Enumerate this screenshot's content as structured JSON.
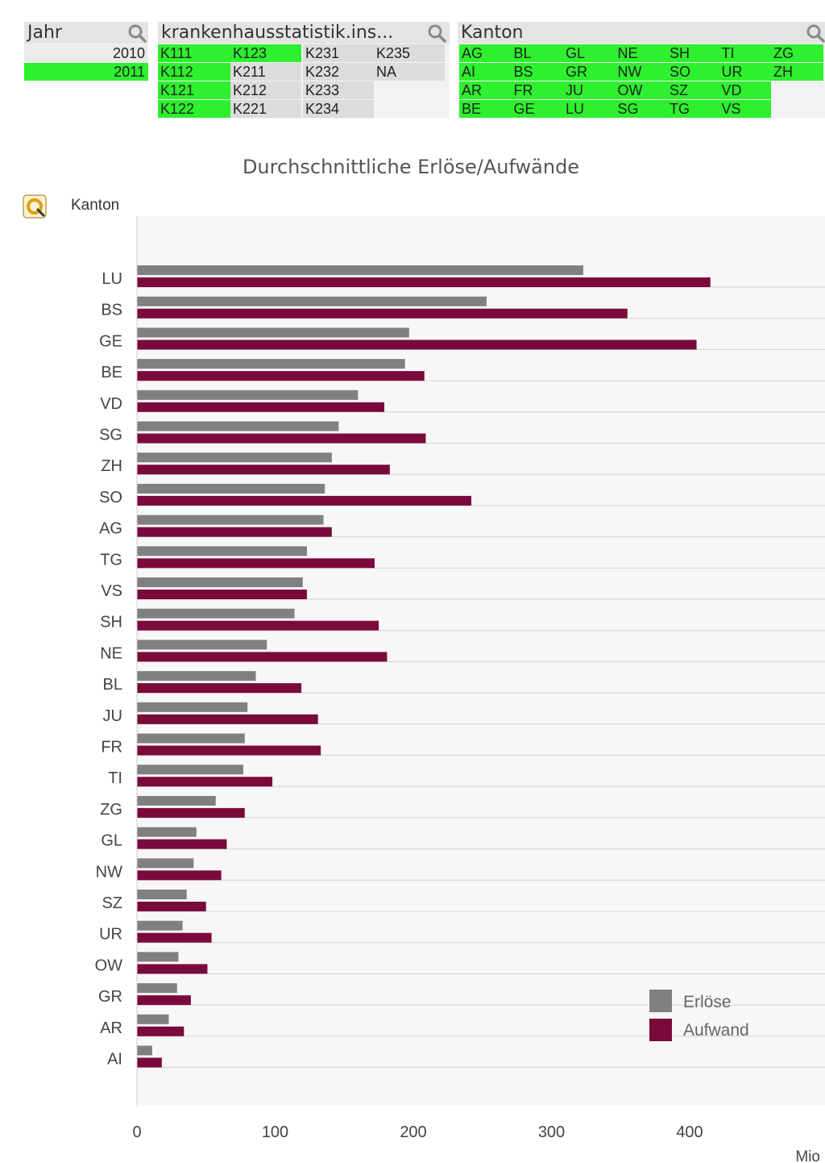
{
  "jahr_box": {
    "title": "Jahr",
    "values": [
      {
        "label": "2010",
        "selected": false
      },
      {
        "label": "2011",
        "selected": true
      }
    ]
  },
  "kh_box": {
    "title": "krankenhausstatistik.ins...",
    "columns": [
      [
        {
          "label": "K111",
          "selected": true
        },
        {
          "label": "K112",
          "selected": true
        },
        {
          "label": "K121",
          "selected": true
        },
        {
          "label": "K122",
          "selected": true
        }
      ],
      [
        {
          "label": "K123",
          "selected": true
        },
        {
          "label": "K211",
          "selected": false
        },
        {
          "label": "K212",
          "selected": false
        },
        {
          "label": "K221",
          "selected": false
        }
      ],
      [
        {
          "label": "K231",
          "selected": false
        },
        {
          "label": "K232",
          "selected": false
        },
        {
          "label": "K233",
          "selected": false
        },
        {
          "label": "K234",
          "selected": false
        }
      ],
      [
        {
          "label": "K235",
          "selected": false
        },
        {
          "label": "NA",
          "selected": false
        }
      ]
    ]
  },
  "kanton_box": {
    "title": "Kanton",
    "rows": [
      [
        "AG",
        "BL",
        "GL",
        "NE",
        "SH",
        "TI",
        "ZG"
      ],
      [
        "AI",
        "BS",
        "GR",
        "NW",
        "SO",
        "UR",
        "ZH"
      ],
      [
        "AR",
        "FR",
        "JU",
        "OW",
        "SZ",
        "VD"
      ],
      [
        "BE",
        "GE",
        "LU",
        "SG",
        "TG",
        "VS"
      ]
    ]
  },
  "colors": {
    "selected": "#2ef02e",
    "erloese": "#808080",
    "aufwand": "#7b0a3c"
  },
  "icons": {
    "search": "search-icon",
    "cycle": "cycle-dimension-icon"
  },
  "chart_data": {
    "type": "bar",
    "orientation": "horizontal",
    "title": "Durchschnittliche Erlöse/Aufwände",
    "dimension_label": "Kanton",
    "unit_label": "Mio",
    "categories": [
      "LU",
      "BS",
      "GE",
      "BE",
      "VD",
      "SG",
      "ZH",
      "SO",
      "AG",
      "TG",
      "VS",
      "SH",
      "NE",
      "BL",
      "JU",
      "FR",
      "TI",
      "ZG",
      "GL",
      "NW",
      "SZ",
      "UR",
      "OW",
      "GR",
      "AR",
      "AI"
    ],
    "series": [
      {
        "name": "Erlöse",
        "values": [
          323,
          253,
          197,
          194,
          160,
          146,
          141,
          136,
          135,
          123,
          120,
          114,
          94,
          86,
          80,
          78,
          77,
          57,
          43,
          41,
          36,
          33,
          30,
          29,
          23,
          11
        ]
      },
      {
        "name": "Aufwand",
        "values": [
          415,
          355,
          405,
          208,
          179,
          209,
          183,
          242,
          141,
          172,
          123,
          175,
          181,
          119,
          131,
          133,
          98,
          78,
          65,
          61,
          50,
          54,
          51,
          39,
          34,
          18
        ]
      }
    ],
    "xlim": [
      0,
      500
    ],
    "xticks": [
      0,
      100,
      200,
      300,
      400
    ],
    "grid": true,
    "legend_position": "bottom-right"
  }
}
